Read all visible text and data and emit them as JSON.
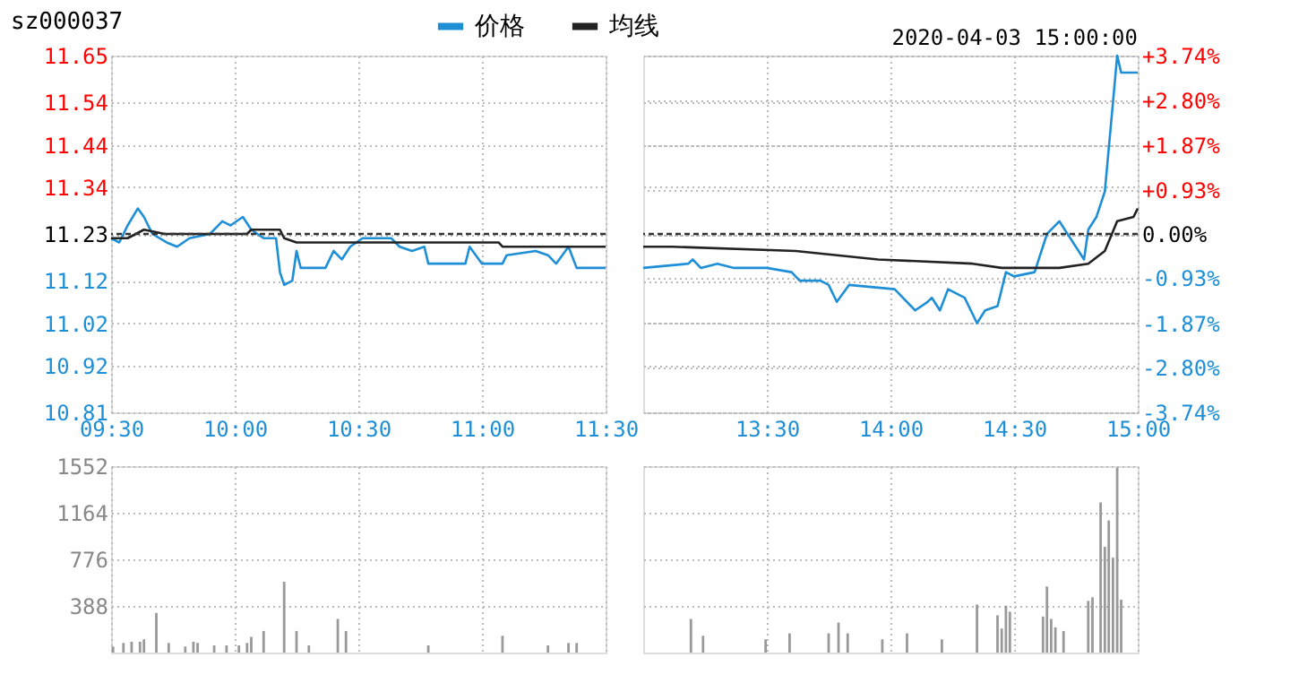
{
  "chart_data": [
    {
      "type": "line",
      "title": "sz000037",
      "legend": "top",
      "marker": "none",
      "line_style": "solid",
      "grid": true,
      "xlim": [
        9.5,
        11.5
      ],
      "xticks": [
        {
          "value": 9.5,
          "label": "09:30"
        },
        {
          "value": 10,
          "label": "10:00"
        },
        {
          "value": 10.5,
          "label": "10:30"
        },
        {
          "value": 11,
          "label": "11:00"
        },
        {
          "value": 11.5,
          "label": "11:30"
        }
      ],
      "ylim": [
        10.81,
        11.65
      ],
      "yticks": [
        10.81,
        10.92,
        11.02,
        11.12,
        11.23,
        11.34,
        11.44,
        11.54,
        11.65
      ],
      "ref_lines": [
        {
          "axis": "y",
          "value": 11.23,
          "color": "#333333",
          "line_style": "dashed"
        }
      ],
      "series": [
        {
          "name": "价格",
          "color": "#1e8fd6",
          "x": [
            9.5,
            9.533,
            9.567,
            9.608,
            9.633,
            9.667,
            9.725,
            9.767,
            9.817,
            9.9,
            9.95,
            9.983,
            10.033,
            10.067,
            10.117,
            10.167,
            10.183,
            10.2,
            10.233,
            10.25,
            10.267,
            10.367,
            10.4,
            10.433,
            10.467,
            10.517,
            10.633,
            10.667,
            10.717,
            10.767,
            10.783,
            10.933,
            10.95,
            11,
            11.083,
            11.1,
            11.217,
            11.267,
            11.3,
            11.35,
            11.383,
            11.5
          ],
          "values": [
            11.22,
            11.21,
            11.25,
            11.29,
            11.27,
            11.23,
            11.21,
            11.2,
            11.22,
            11.23,
            11.26,
            11.25,
            11.27,
            11.24,
            11.22,
            11.22,
            11.14,
            11.11,
            11.12,
            11.19,
            11.15,
            11.15,
            11.19,
            11.17,
            11.2,
            11.22,
            11.22,
            11.2,
            11.19,
            11.2,
            11.16,
            11.16,
            11.2,
            11.16,
            11.16,
            11.18,
            11.19,
            11.18,
            11.16,
            11.2,
            11.15,
            11.15
          ]
        },
        {
          "name": "均线",
          "color": "#222222",
          "x": [
            9.5,
            9.567,
            9.633,
            9.717,
            10.05,
            10.067,
            10.183,
            10.2,
            10.25,
            11.067,
            11.083,
            11.5
          ],
          "values": [
            11.22,
            11.22,
            11.24,
            11.23,
            11.23,
            11.24,
            11.24,
            11.22,
            11.21,
            11.21,
            11.2,
            11.2
          ]
        }
      ]
    },
    {
      "type": "line",
      "annotations": [
        "2020-04-03 15:00:00"
      ],
      "marker": "none",
      "line_style": "solid",
      "grid": true,
      "tick_labels": "x",
      "xlim": [
        13,
        15
      ],
      "xticks": [
        {
          "value": 13.5,
          "label": "13:30"
        },
        {
          "value": 14,
          "label": "14:00"
        },
        {
          "value": 14.5,
          "label": "14:30"
        },
        {
          "value": 15,
          "label": "15:00"
        }
      ],
      "ylim": [
        10.81,
        11.65
      ],
      "yticks": [
        10.81,
        10.92,
        11.02,
        11.12,
        11.23,
        11.34,
        11.44,
        11.54,
        11.65
      ],
      "y2lim": [
        -3.74,
        3.74
      ],
      "y2ticks": [
        {
          "value": -3.74,
          "label": "-3.74%"
        },
        {
          "value": -2.8,
          "label": "-2.80%"
        },
        {
          "value": -1.87,
          "label": "-1.87%"
        },
        {
          "value": -0.93,
          "label": "-0.93%"
        },
        {
          "value": 0,
          "label": "0.00%"
        },
        {
          "value": 0.93,
          "label": "+0.93%"
        },
        {
          "value": 1.87,
          "label": "+1.87%"
        },
        {
          "value": 2.8,
          "label": "+2.80%"
        },
        {
          "value": 3.74,
          "label": "+3.74%"
        }
      ],
      "ref_lines": [
        {
          "axis": "y",
          "value": 11.23,
          "color": "#333333",
          "line_style": "dashed"
        }
      ],
      "series": [
        {
          "name": "价格",
          "color": "#1e8fd6",
          "x": [
            13,
            13.183,
            13.2,
            13.233,
            13.3,
            13.367,
            13.5,
            13.6,
            13.633,
            13.717,
            13.75,
            13.783,
            13.833,
            14.017,
            14.1,
            14.15,
            14.167,
            14.2,
            14.233,
            14.3,
            14.35,
            14.383,
            14.433,
            14.45,
            14.467,
            14.5,
            14.583,
            14.633,
            14.683,
            14.783,
            14.8,
            14.833,
            14.867,
            14.9,
            14.917,
            14.933,
            15
          ],
          "values": [
            11.15,
            11.16,
            11.17,
            11.15,
            11.16,
            11.15,
            11.15,
            11.14,
            11.12,
            11.12,
            11.11,
            11.07,
            11.11,
            11.1,
            11.05,
            11.07,
            11.08,
            11.05,
            11.1,
            11.08,
            11.02,
            11.05,
            11.06,
            11.1,
            11.14,
            11.13,
            11.14,
            11.23,
            11.26,
            11.17,
            11.24,
            11.27,
            11.33,
            11.54,
            11.65,
            11.61,
            11.61
          ]
        },
        {
          "name": "均线",
          "color": "#222222",
          "x": [
            13,
            13.117,
            13.617,
            13.95,
            14.333,
            14.45,
            14.6,
            14.683,
            14.8,
            14.867,
            14.917,
            14.983,
            15
          ],
          "values": [
            11.2,
            11.2,
            11.19,
            11.17,
            11.16,
            11.15,
            11.15,
            11.15,
            11.16,
            11.19,
            11.26,
            11.27,
            11.29
          ]
        }
      ]
    },
    {
      "type": "bar",
      "color": "#999999",
      "grid": true,
      "tick_labels": "y",
      "xlim": [
        9.5,
        11.5
      ],
      "xticks": [
        {
          "value": 9.5,
          "label": null
        },
        {
          "value": 10,
          "label": null
        },
        {
          "value": 10.5,
          "label": null
        },
        {
          "value": 11,
          "label": null
        },
        {
          "value": 11.5,
          "label": null
        }
      ],
      "ylim": [
        0,
        1552
      ],
      "yticks": [
        388,
        776,
        1164,
        1552
      ],
      "x": [
        9.508,
        9.55,
        9.583,
        9.617,
        9.633,
        9.683,
        9.733,
        9.8,
        9.833,
        9.85,
        9.917,
        9.967,
        10.017,
        10.05,
        10.067,
        10.117,
        10.2,
        10.25,
        10.3,
        10.417,
        10.45,
        10.783,
        11.083,
        11.267,
        11.35,
        11.383
      ],
      "values": [
        50,
        80,
        90,
        90,
        110,
        330,
        80,
        50,
        90,
        80,
        60,
        60,
        60,
        80,
        130,
        180,
        590,
        180,
        60,
        280,
        180,
        60,
        140,
        60,
        80,
        80
      ]
    },
    {
      "type": "bar",
      "color": "#999999",
      "grid": true,
      "tick_labels": false,
      "xlim": [
        13,
        15
      ],
      "xticks": [
        {
          "value": 13.5,
          "label": null
        },
        {
          "value": 14,
          "label": null
        },
        {
          "value": 14.5,
          "label": null
        },
        {
          "value": 15,
          "label": null
        }
      ],
      "ylim": [
        0,
        1552
      ],
      "yticks": [
        388,
        776,
        1164,
        1552
      ],
      "x": [
        13.193,
        13.242,
        13.495,
        13.592,
        13.75,
        13.79,
        13.827,
        13.967,
        14.067,
        14.208,
        14.35,
        14.433,
        14.45,
        14.467,
        14.483,
        14.617,
        14.633,
        14.65,
        14.667,
        14.7,
        14.8,
        14.817,
        14.85,
        14.867,
        14.883,
        14.9,
        14.917,
        14.933
      ],
      "values": [
        280,
        140,
        110,
        160,
        160,
        250,
        160,
        110,
        160,
        110,
        400,
        310,
        200,
        390,
        340,
        300,
        550,
        280,
        210,
        180,
        430,
        460,
        1250,
        880,
        1100,
        790,
        1540,
        440
      ]
    }
  ]
}
